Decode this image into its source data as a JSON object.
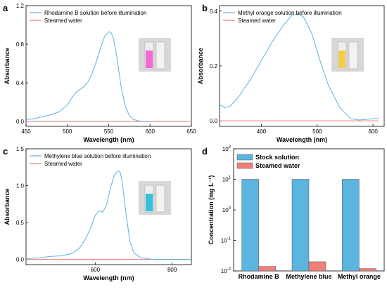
{
  "colors": {
    "solution": "#5fb3de",
    "water": "#f07b77",
    "stock_bar": "#5bb5df",
    "steamed_bar": "#f07f7a"
  },
  "chart_data": [
    {
      "panel": "a",
      "type": "line",
      "xlabel": "Wavelength (nm)",
      "ylabel": "Absorbance",
      "xlim": [
        450,
        650
      ],
      "ylim": [
        -0.05,
        1.2
      ],
      "xticks": [
        "450",
        "500",
        "550",
        "600",
        "650"
      ],
      "yticks": [
        "0.0",
        "0.4",
        "0.8",
        "1.2"
      ],
      "xtick_values": [
        450,
        500,
        550,
        600,
        650
      ],
      "ytick_values": [
        0.0,
        0.4,
        0.8,
        1.2
      ],
      "grid": false,
      "legend_position": "top-left",
      "series": [
        {
          "name": "Rhodamine B solution before illumination",
          "color": "#5fb3de",
          "x": [
            450,
            460,
            470,
            480,
            490,
            500,
            505,
            510,
            515,
            520,
            525,
            530,
            535,
            540,
            545,
            550,
            553,
            556,
            560,
            565,
            570,
            575,
            580,
            585,
            590,
            600
          ],
          "y": [
            0.02,
            0.03,
            0.05,
            0.07,
            0.1,
            0.17,
            0.24,
            0.3,
            0.33,
            0.36,
            0.41,
            0.5,
            0.62,
            0.76,
            0.88,
            0.93,
            0.92,
            0.85,
            0.66,
            0.36,
            0.16,
            0.06,
            0.02,
            0.01,
            0.0,
            0.0
          ]
        },
        {
          "name": "Steamed water",
          "color": "#f07b77",
          "x": [
            450,
            650
          ],
          "y": [
            0.0,
            0.0
          ]
        }
      ]
    },
    {
      "panel": "b",
      "type": "line",
      "xlabel": "Wavelength (nm)",
      "ylabel": "Absorbance",
      "xlim": [
        325,
        620
      ],
      "ylim": [
        -0.02,
        0.42
      ],
      "xticks": [
        "400",
        "500",
        "600"
      ],
      "yticks": [
        "0.0",
        "0.2",
        "0.4"
      ],
      "xtick_values": [
        400,
        500,
        600
      ],
      "ytick_values": [
        0.0,
        0.2,
        0.4
      ],
      "grid": false,
      "legend_position": "top-left",
      "series": [
        {
          "name": "Methyl orange solution before illumination",
          "color": "#5fb3de",
          "x": [
            325,
            335,
            345,
            360,
            380,
            400,
            420,
            440,
            455,
            465,
            475,
            490,
            505,
            520,
            540,
            560,
            575,
            590,
            600,
            610
          ],
          "y": [
            0.058,
            0.048,
            0.055,
            0.09,
            0.15,
            0.22,
            0.29,
            0.35,
            0.385,
            0.39,
            0.38,
            0.32,
            0.22,
            0.13,
            0.05,
            0.008,
            0.003,
            0.006,
            0.008,
            0.008
          ]
        },
        {
          "name": "Steamed water",
          "color": "#f07b77",
          "x": [
            325,
            610
          ],
          "y": [
            0.0,
            0.0
          ]
        }
      ]
    },
    {
      "panel": "c",
      "type": "line",
      "xlabel": "Wavelength (nm)",
      "ylabel": "Absorbance",
      "xlim": [
        420,
        850
      ],
      "ylim": [
        -0.07,
        1.5
      ],
      "xticks": [
        "600",
        "800"
      ],
      "yticks": [
        "0.0",
        "0.5",
        "1.0",
        "1.5"
      ],
      "xtick_values": [
        600,
        800
      ],
      "ytick_values": [
        0.0,
        0.5,
        1.0,
        1.5
      ],
      "grid": false,
      "legend_position": "top-left",
      "series": [
        {
          "name": "Methylene blue solution before illumination",
          "color": "#5fb3de",
          "x": [
            420,
            450,
            480,
            510,
            540,
            560,
            575,
            590,
            600,
            610,
            620,
            630,
            640,
            650,
            660,
            665,
            670,
            680,
            690,
            700,
            720,
            750,
            800,
            850
          ],
          "y": [
            0.01,
            0.02,
            0.04,
            0.05,
            0.08,
            0.16,
            0.28,
            0.45,
            0.6,
            0.66,
            0.64,
            0.75,
            0.98,
            1.15,
            1.2,
            1.18,
            1.05,
            0.62,
            0.25,
            0.09,
            0.02,
            0.0,
            0.0,
            0.0
          ]
        },
        {
          "name": "Steamed water",
          "color": "#f07b77",
          "x": [
            420,
            850
          ],
          "y": [
            0.0,
            0.0
          ]
        }
      ]
    },
    {
      "panel": "d",
      "type": "bar",
      "xlabel": "",
      "ylabel": "Concentration (mg L⁻¹)",
      "yscale": "log",
      "ylim": [
        0.01,
        100
      ],
      "ytick_values": [
        0.01,
        0.1,
        1,
        10,
        100
      ],
      "yticks": [
        {
          "base": "10",
          "exp": "-2"
        },
        {
          "base": "10",
          "exp": "-1"
        },
        {
          "base": "10",
          "exp": "0"
        },
        {
          "base": "10",
          "exp": "1"
        },
        {
          "base": "10",
          "exp": "2"
        }
      ],
      "categories": [
        "Rhodamine B",
        "Methylene blue",
        "Methyl orange"
      ],
      "grid": false,
      "legend_position": "top-left",
      "series": [
        {
          "name": "Stock solution",
          "color": "#5bb5df",
          "values": [
            10,
            10,
            10
          ]
        },
        {
          "name": "Steamed water",
          "color": "#f07f7a",
          "values": [
            0.014,
            0.02,
            0.012
          ]
        }
      ]
    }
  ]
}
